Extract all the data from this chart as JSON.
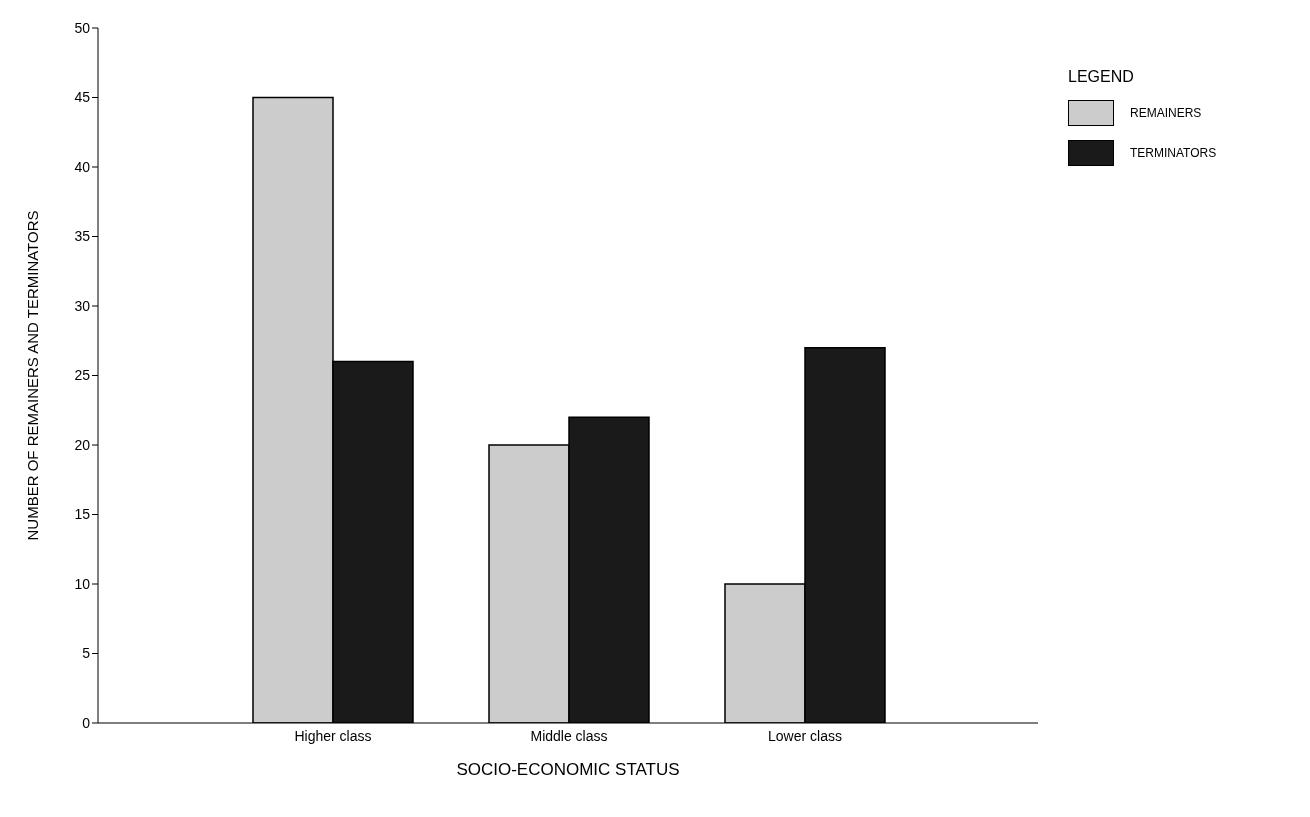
{
  "chart_data": {
    "type": "bar",
    "xlabel": "SOCIO-ECONOMIC STATUS",
    "ylabel": "NUMBER OF REMAINERS AND TERMINATORS",
    "legend_title": "LEGEND",
    "categories": [
      "Higher class",
      "Middle class",
      "Lower class"
    ],
    "series": [
      {
        "name": "REMAINERS",
        "color": "#cccccc",
        "values": [
          45,
          20,
          10
        ]
      },
      {
        "name": "TERMINATORS",
        "color": "#1a1a1a",
        "values": [
          26,
          22,
          27
        ]
      }
    ],
    "ylim": [
      0,
      50
    ],
    "yticks": [
      0,
      5,
      10,
      15,
      20,
      25,
      30,
      35,
      40,
      45,
      50
    ],
    "grid": false,
    "legend": "top right"
  }
}
